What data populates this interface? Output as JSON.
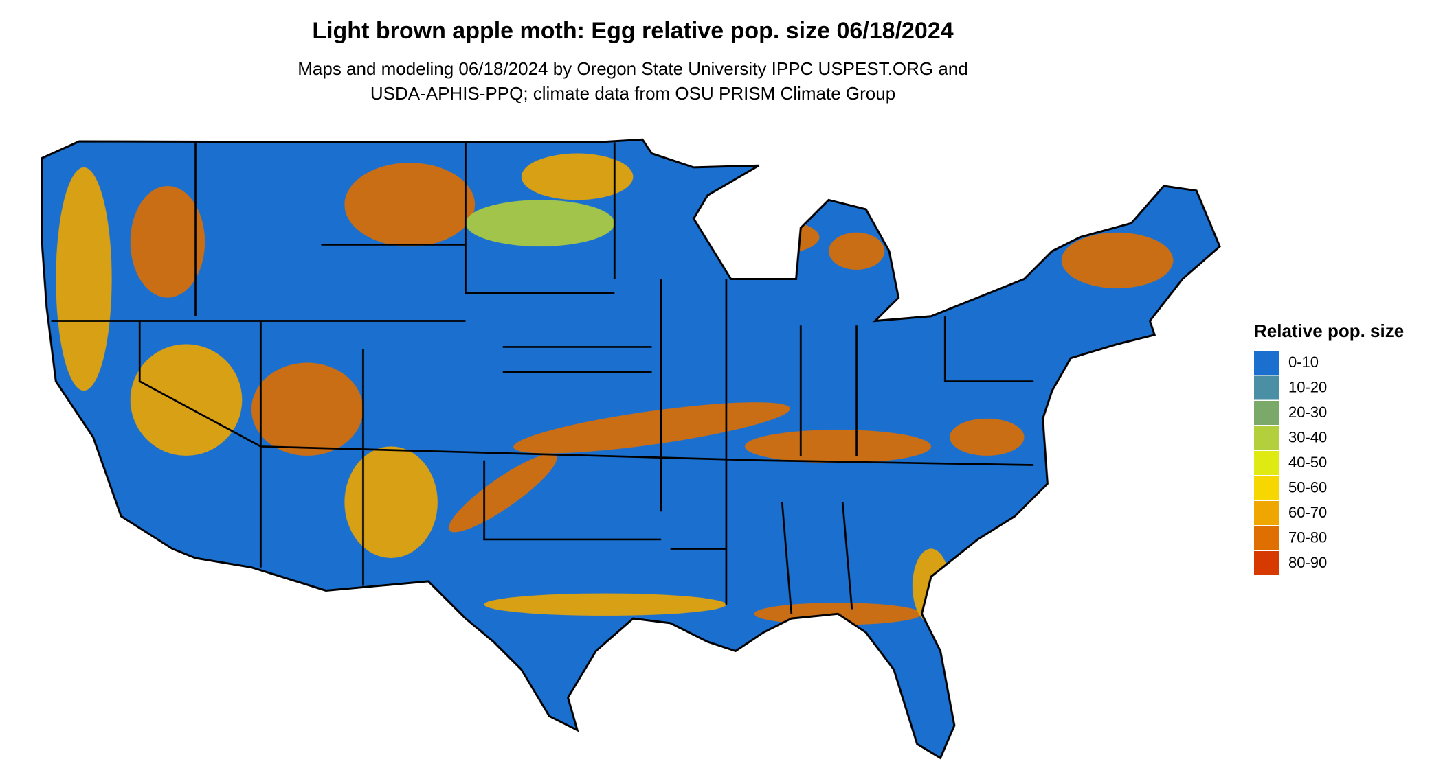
{
  "title": "Light brown apple moth: Egg relative pop. size 06/18/2024",
  "subtitle": [
    "Maps and modeling 06/18/2024 by Oregon State University IPPC USPEST.ORG and",
    "USDA-APHIS-PPQ; climate data from OSU PRISM Climate Group"
  ],
  "legend": {
    "title": "Relative pop. size",
    "items": [
      {
        "label": "0-10",
        "color": "#1b70cf"
      },
      {
        "label": "10-20",
        "color": "#4a8fa3"
      },
      {
        "label": "20-30",
        "color": "#7ba96a"
      },
      {
        "label": "30-40",
        "color": "#b3cf3b"
      },
      {
        "label": "40-50",
        "color": "#dfea12"
      },
      {
        "label": "50-60",
        "color": "#f6d700"
      },
      {
        "label": "60-70",
        "color": "#efa600"
      },
      {
        "label": "70-80",
        "color": "#df6f00"
      },
      {
        "label": "80-90",
        "color": "#d63a00"
      }
    ]
  }
}
